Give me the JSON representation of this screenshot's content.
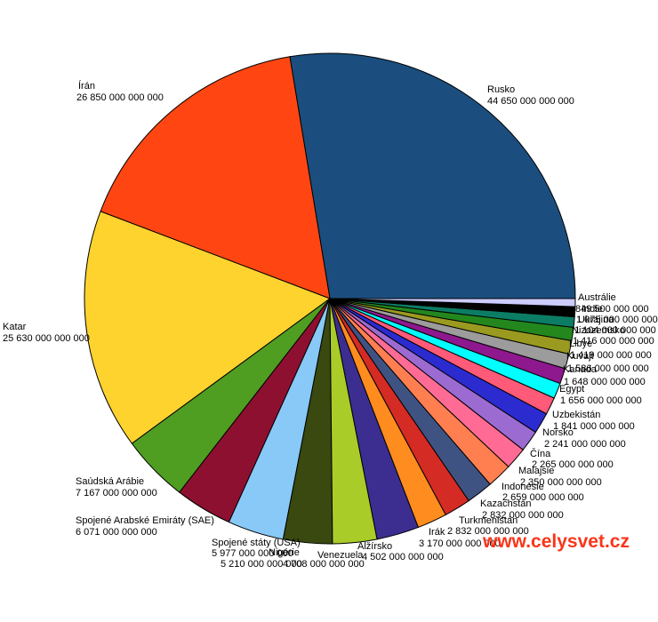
{
  "watermark": {
    "text": "www.celysvet.cz",
    "color": "#FA3519"
  },
  "background_color": "#FFFFFF",
  "chart_data": {
    "type": "pie",
    "title": "",
    "legend": "none",
    "grid": "off",
    "unit": "m3",
    "slices": [
      {
        "name": "Rusko",
        "value": 44650000000000,
        "value_display": "44 650 000 000 000",
        "color": "#1B4E7E"
      },
      {
        "name": "Írán",
        "value": 26850000000000,
        "value_display": "26 850 000 000 000",
        "color": "#FF4612"
      },
      {
        "name": "Katar",
        "value": 25630000000000,
        "value_display": "25 630 000 000 000",
        "color": "#FFD32E"
      },
      {
        "name": "Saúdská Arábie",
        "value": 7167000000000,
        "value_display": "7 167 000 000 000",
        "color": "#4F9D21"
      },
      {
        "name": "Spojené Arabské Emiráty (SAE)",
        "value": 6071000000000,
        "value_display": "6 071 000 000 000",
        "color": "#8E1030"
      },
      {
        "name": "Spojené státy (USA)",
        "value": 5977000000000,
        "value_display": "5 977 000 000 000",
        "color": "#88C9F8"
      },
      {
        "name": "Nigérie",
        "value": 5210000000000,
        "value_display": "5 210 000 000 000",
        "color": "#39490F"
      },
      {
        "name": "Venezuela",
        "value": 4708000000000,
        "value_display": "4 708 000 000 000",
        "color": "#A9CC29"
      },
      {
        "name": "Alžírsko",
        "value": 4502000000000,
        "value_display": "4 502 000 000 000",
        "color": "#3C2E90"
      },
      {
        "name": "Irák",
        "value": 3170000000000,
        "value_display": "3 170 000 000 000",
        "color": "#FF8C1E"
      },
      {
        "name": "Turkmenistán",
        "value": 2832000000000,
        "value_display": "2 832 000 000 000",
        "color": "#D42B24"
      },
      {
        "name": "Kazachstán",
        "value": 2832000000000,
        "value_display": "2 832 000 000 000",
        "color": "#3E5382"
      },
      {
        "name": "Indonésie",
        "value": 2659000000000,
        "value_display": "2 659 000 000 000",
        "color": "#FF7F50"
      },
      {
        "name": "Malajsie",
        "value": 2350000000000,
        "value_display": "2 350 000 000 000",
        "color": "#FF6B95"
      },
      {
        "name": "Čína",
        "value": 2265000000000,
        "value_display": "2 265 000 000 000",
        "color": "#9B6BD2"
      },
      {
        "name": "Norsko",
        "value": 2241000000000,
        "value_display": "2 241 000 000 000",
        "color": "#2B2BD0"
      },
      {
        "name": "Uzbekistán",
        "value": 1841000000000,
        "value_display": "1 841 000 000 000",
        "color": "#FF5A78"
      },
      {
        "name": "Egypt",
        "value": 1656000000000,
        "value_display": "1 656 000 000 000",
        "color": "#00FFFF"
      },
      {
        "name": "Kanada",
        "value": 1648000000000,
        "value_display": "1 648 000 000 000",
        "color": "#8E188E"
      },
      {
        "name": "Kuvajt",
        "value": 1586000000000,
        "value_display": "1 586 000 000 000",
        "color": "#9C9C9C"
      },
      {
        "name": "Libye",
        "value": 1419000000000,
        "value_display": "1 419 000 000 000",
        "color": "#9A9A20"
      },
      {
        "name": "Nizozemsko",
        "value": 1416000000000,
        "value_display": "1 416 000 000 000",
        "color": "#23871E"
      },
      {
        "name": "Ukrajina",
        "value": 1104000000000,
        "value_display": "1 104 000 000 000",
        "color": "#0C7D65"
      },
      {
        "name": "Indie",
        "value": 1075000000000,
        "value_display": "1 075 000 000 000",
        "color": "#000000"
      },
      {
        "name": "Austrálie",
        "value": 849500000000,
        "value_display": "849 500 000 000",
        "color": "#CCCCFF"
      }
    ]
  }
}
